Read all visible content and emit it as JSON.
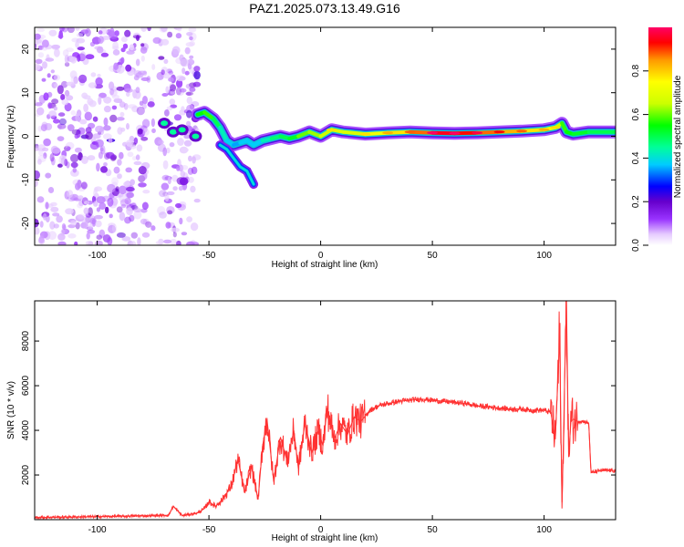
{
  "figure": {
    "title": "PAZ1.2025.073.13.49.G16"
  },
  "chart_data": [
    {
      "type": "heatmap",
      "xlabel": "Height of straight line (km)",
      "ylabel": "Frequency (Hz)",
      "xlim": [
        -128,
        132
      ],
      "ylim": [
        -25,
        25
      ],
      "xticks": [
        -100,
        -50,
        0,
        50,
        100
      ],
      "yticks": [
        -20,
        -10,
        0,
        10,
        20
      ],
      "colorbar": {
        "label": "Normalized spectral amplitude",
        "range": [
          0,
          1
        ],
        "ticks": [
          0.0,
          0.2,
          0.4,
          0.6,
          0.8
        ],
        "tick_labels": [
          "0.0",
          "0.2",
          "0.4",
          "0.6",
          "0.8"
        ],
        "colors": [
          "#ffffff",
          "#e6ccff",
          "#9933ff",
          "#6600cc",
          "#0000ff",
          "#00ccff",
          "#00ff99",
          "#00ff00",
          "#ccff00",
          "#ffff00",
          "#ff9900",
          "#ff0000",
          "#ff0066"
        ]
      },
      "noise_region_x": [
        -128,
        -55
      ],
      "ridge": {
        "x": [
          -55,
          -52,
          -48,
          -45,
          -42,
          -39,
          -36,
          -33,
          -30,
          -26,
          -22,
          -18,
          -14,
          -10,
          -5,
          0,
          5,
          10,
          20,
          30,
          40,
          50,
          60,
          70,
          80,
          90,
          100,
          105,
          108,
          110,
          113,
          120,
          132
        ],
        "y": [
          5,
          5.5,
          4,
          2,
          -1,
          -2,
          -1.5,
          -1,
          -2,
          -1,
          -0.5,
          0,
          -0.5,
          0,
          1,
          0,
          1.5,
          1,
          0.5,
          0.8,
          1,
          0.8,
          0.7,
          0.8,
          1,
          1.2,
          1.5,
          2,
          3,
          1,
          0.5,
          1,
          1
        ],
        "amplitude": [
          0.5,
          0.6,
          0.55,
          0.45,
          0.4,
          0.35,
          0.35,
          0.4,
          0.35,
          0.4,
          0.45,
          0.5,
          0.5,
          0.55,
          0.65,
          0.6,
          0.7,
          0.65,
          0.7,
          0.75,
          0.8,
          0.95,
          0.95,
          0.9,
          0.85,
          0.8,
          0.75,
          0.7,
          0.6,
          0.55,
          0.55,
          0.5,
          0.5
        ]
      },
      "branch": {
        "x": [
          -45,
          -42,
          -39,
          -36,
          -33,
          -30
        ],
        "y": [
          -2,
          -3,
          -5,
          -7,
          -8,
          -11
        ]
      },
      "small_blobs": [
        {
          "x": -70,
          "y": 3
        },
        {
          "x": -66,
          "y": 1
        },
        {
          "x": -62,
          "y": 1.5
        },
        {
          "x": -56,
          "y": 0
        }
      ]
    },
    {
      "type": "line",
      "xlabel": "Height of straight line (km)",
      "ylabel": "SNR (10 * v/v)",
      "xlim": [
        -128,
        132
      ],
      "ylim": [
        0,
        9800
      ],
      "xticks": [
        -100,
        -50,
        0,
        50,
        100
      ],
      "yticks": [
        2000,
        4000,
        6000,
        8000
      ],
      "color": "#ff3333",
      "series": [
        {
          "x": [
            -128,
            -110,
            -90,
            -75,
            -68,
            -66,
            -62,
            -55,
            -52,
            -50,
            -47,
            -44,
            -40,
            -37,
            -34,
            -31,
            -28,
            -26,
            -24,
            -21,
            -18,
            -15,
            -12,
            -10,
            -7,
            -4,
            -1,
            1,
            3,
            6,
            9,
            12,
            15,
            18,
            22,
            26,
            30,
            35,
            40,
            45,
            50,
            55,
            60,
            65,
            70,
            75,
            80,
            85,
            90,
            95,
            100,
            103,
            105,
            107,
            108,
            109,
            110,
            111,
            112,
            113,
            115,
            118,
            120,
            121,
            125,
            132
          ],
          "y": [
            100,
            120,
            150,
            180,
            200,
            600,
            180,
            300,
            500,
            800,
            600,
            900,
            1500,
            2700,
            1200,
            2400,
            900,
            3300,
            4500,
            1700,
            3700,
            2600,
            4000,
            2300,
            4300,
            3000,
            4000,
            3300,
            5000,
            3600,
            4300,
            3800,
            4600,
            4400,
            4900,
            5100,
            5200,
            5300,
            5350,
            5400,
            5350,
            5300,
            5250,
            5200,
            5100,
            5050,
            5000,
            4950,
            4950,
            4900,
            4900,
            4800,
            3600,
            8200,
            500,
            5200,
            9800,
            2800,
            4400,
            4500,
            4400,
            4400,
            4300,
            2100,
            2200,
            2200
          ]
        }
      ]
    }
  ]
}
